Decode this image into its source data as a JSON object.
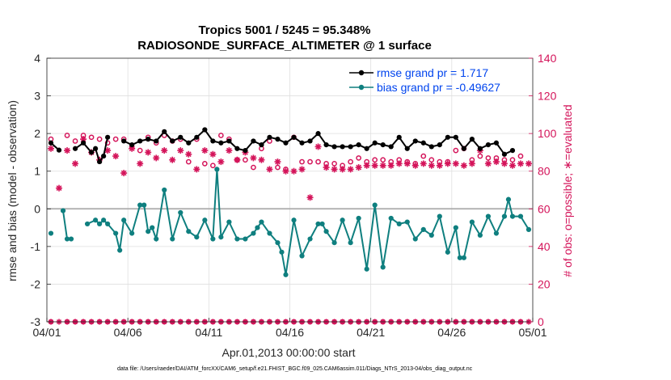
{
  "chart_data": {
    "type": "line",
    "title": "Tropics 5001 / 5245 = 95.348%",
    "subtitle": "RADIOSONDE_SURFACE_ALTIMETER @ 1 surface",
    "xlabel": "Apr.01,2013 00:00:00 start",
    "ylabel": "rmse and bias (model - observation)",
    "ylabel_right": "# of obs: o=possible; ∗=evaluated",
    "xlim": [
      1,
      31
    ],
    "ylim": [
      -3,
      4
    ],
    "ylim_right": [
      0,
      140
    ],
    "x_tick_labels": [
      "04/01",
      "04/06",
      "04/11",
      "04/16",
      "04/21",
      "04/26",
      "05/01"
    ],
    "y_tick_labels": [
      "-3",
      "-2",
      "-1",
      "0",
      "1",
      "2",
      "3",
      "4"
    ],
    "y_tick_labels_right": [
      "0",
      "20",
      "40",
      "60",
      "80",
      "100",
      "120",
      "140"
    ],
    "colors": {
      "rmse": "#000000",
      "bias": "#0f7f7f",
      "obs": "#d4145a",
      "legend_text": "#0044ee",
      "zero_line": "#aaaaaa"
    },
    "series": [
      {
        "name": "rmse grand pr = 1.717",
        "marker": "filled-circle",
        "points": [
          [
            1.25,
            1.75
          ],
          [
            1.75,
            1.56
          ],
          [
            2.75,
            1.6
          ],
          [
            3.25,
            1.75
          ],
          [
            3.75,
            1.5
          ],
          [
            4.0,
            1.6
          ],
          [
            4.25,
            1.25
          ],
          [
            4.5,
            1.4
          ],
          [
            4.75,
            1.9
          ],
          [
            5.75,
            1.8
          ],
          [
            6.25,
            1.7
          ],
          [
            6.75,
            1.8
          ],
          [
            7.25,
            1.85
          ],
          [
            7.75,
            1.8
          ],
          [
            8.25,
            2.05
          ],
          [
            8.75,
            1.8
          ],
          [
            9.25,
            1.9
          ],
          [
            9.75,
            1.75
          ],
          [
            10.25,
            1.9
          ],
          [
            10.75,
            2.1
          ],
          [
            11.25,
            1.8
          ],
          [
            11.75,
            1.75
          ],
          [
            12.25,
            1.8
          ],
          [
            12.75,
            1.6
          ],
          [
            13.25,
            1.55
          ],
          [
            13.75,
            1.8
          ],
          [
            14.25,
            1.7
          ],
          [
            14.75,
            1.9
          ],
          [
            15.25,
            1.85
          ],
          [
            15.75,
            1.75
          ],
          [
            16.25,
            1.9
          ],
          [
            16.75,
            1.75
          ],
          [
            17.25,
            1.8
          ],
          [
            17.75,
            2.0
          ],
          [
            18.25,
            1.7
          ],
          [
            18.75,
            1.65
          ],
          [
            19.25,
            1.65
          ],
          [
            19.75,
            1.65
          ],
          [
            20.25,
            1.7
          ],
          [
            20.75,
            1.6
          ],
          [
            21.25,
            1.75
          ],
          [
            21.75,
            1.7
          ],
          [
            22.25,
            1.65
          ],
          [
            22.75,
            1.9
          ],
          [
            23.25,
            1.6
          ],
          [
            23.75,
            1.8
          ],
          [
            24.25,
            1.75
          ],
          [
            24.75,
            1.65
          ],
          [
            25.25,
            1.7
          ],
          [
            25.75,
            1.9
          ],
          [
            26.25,
            1.9
          ],
          [
            26.75,
            1.6
          ],
          [
            27.25,
            1.85
          ],
          [
            27.75,
            1.6
          ],
          [
            28.25,
            1.7
          ],
          [
            28.75,
            1.75
          ],
          [
            29.25,
            1.45
          ],
          [
            29.75,
            1.55
          ]
        ]
      },
      {
        "name": "bias grand pr = -0.49627",
        "marker": "filled-circle",
        "points": [
          [
            1.25,
            -0.65
          ],
          [
            2.0,
            -0.05
          ],
          [
            2.25,
            -0.8
          ],
          [
            2.5,
            -0.8
          ],
          [
            3.5,
            -0.4
          ],
          [
            4.0,
            -0.3
          ],
          [
            4.25,
            -0.4
          ],
          [
            4.5,
            -0.3
          ],
          [
            4.75,
            -0.4
          ],
          [
            5.25,
            -0.65
          ],
          [
            5.5,
            -1.1
          ],
          [
            5.75,
            -0.3
          ],
          [
            6.25,
            -0.65
          ],
          [
            6.75,
            0.1
          ],
          [
            7.0,
            0.1
          ],
          [
            7.25,
            -0.6
          ],
          [
            7.5,
            -0.5
          ],
          [
            7.75,
            -0.8
          ],
          [
            8.25,
            0.5
          ],
          [
            8.75,
            -0.8
          ],
          [
            9.25,
            -0.1
          ],
          [
            9.75,
            -0.6
          ],
          [
            10.25,
            -0.75
          ],
          [
            10.75,
            -0.3
          ],
          [
            11.25,
            -0.8
          ],
          [
            11.5,
            1.05
          ],
          [
            11.75,
            -0.75
          ],
          [
            12.25,
            -0.35
          ],
          [
            12.75,
            -0.8
          ],
          [
            13.25,
            -0.8
          ],
          [
            13.75,
            -0.65
          ],
          [
            14.0,
            -0.5
          ],
          [
            14.25,
            -0.35
          ],
          [
            14.75,
            -0.65
          ],
          [
            15.25,
            -0.9
          ],
          [
            15.5,
            -1.15
          ],
          [
            15.75,
            -1.75
          ],
          [
            16.25,
            -0.3
          ],
          [
            16.75,
            -1.25
          ],
          [
            17.25,
            -0.8
          ],
          [
            17.75,
            -0.4
          ],
          [
            18.0,
            -0.4
          ],
          [
            18.25,
            -0.6
          ],
          [
            18.75,
            -0.9
          ],
          [
            19.25,
            -0.3
          ],
          [
            19.75,
            -0.9
          ],
          [
            20.25,
            -0.25
          ],
          [
            20.75,
            -1.6
          ],
          [
            21.25,
            0.1
          ],
          [
            21.75,
            -1.55
          ],
          [
            22.25,
            -0.25
          ],
          [
            22.75,
            -0.4
          ],
          [
            23.25,
            -0.35
          ],
          [
            23.75,
            -0.8
          ],
          [
            24.25,
            -0.55
          ],
          [
            24.75,
            -0.7
          ],
          [
            25.25,
            -0.2
          ],
          [
            25.75,
            -1.15
          ],
          [
            26.25,
            -0.5
          ],
          [
            26.5,
            -1.3
          ],
          [
            26.75,
            -1.3
          ],
          [
            27.25,
            -0.35
          ],
          [
            27.75,
            -0.7
          ],
          [
            28.25,
            -0.2
          ],
          [
            28.75,
            -0.65
          ],
          [
            29.25,
            -0.2
          ],
          [
            29.5,
            0.25
          ],
          [
            29.75,
            -0.2
          ],
          [
            30.25,
            -0.2
          ],
          [
            30.75,
            -0.55
          ]
        ]
      },
      {
        "name": "obs possible",
        "marker": "open-circle",
        "axis": "right",
        "points": [
          [
            1.25,
            97
          ],
          [
            2.25,
            99
          ],
          [
            2.75,
            96
          ],
          [
            3.25,
            99
          ],
          [
            3.75,
            98
          ],
          [
            4.25,
            97
          ],
          [
            4.75,
            95
          ],
          [
            5.25,
            97
          ],
          [
            5.75,
            97
          ],
          [
            6.25,
            93
          ],
          [
            6.75,
            91
          ],
          [
            7.25,
            98
          ],
          [
            7.75,
            95
          ],
          [
            8.25,
            99
          ],
          [
            8.75,
            96
          ],
          [
            9.25,
            97
          ],
          [
            9.75,
            85
          ],
          [
            10.25,
            97
          ],
          [
            10.75,
            84
          ],
          [
            11.25,
            83
          ],
          [
            11.75,
            99
          ],
          [
            12.25,
            97
          ],
          [
            12.75,
            86
          ],
          [
            13.25,
            86
          ],
          [
            13.75,
            82
          ],
          [
            14.25,
            92
          ],
          [
            14.75,
            96
          ],
          [
            15.25,
            82
          ],
          [
            15.75,
            81
          ],
          [
            16.25,
            98
          ],
          [
            16.75,
            85
          ],
          [
            17.25,
            85
          ],
          [
            17.75,
            85
          ],
          [
            18.25,
            84
          ],
          [
            18.75,
            84
          ],
          [
            19.25,
            83
          ],
          [
            19.75,
            85
          ],
          [
            20.25,
            87
          ],
          [
            20.75,
            85
          ],
          [
            21.25,
            86
          ],
          [
            21.75,
            86
          ],
          [
            22.25,
            85
          ],
          [
            22.75,
            86
          ],
          [
            23.25,
            85
          ],
          [
            23.75,
            84
          ],
          [
            24.25,
            88
          ],
          [
            24.75,
            86
          ],
          [
            25.25,
            85
          ],
          [
            25.75,
            85
          ],
          [
            26.25,
            91
          ],
          [
            26.75,
            92
          ],
          [
            27.25,
            86
          ],
          [
            27.75,
            88
          ],
          [
            28.25,
            87
          ],
          [
            28.75,
            87
          ],
          [
            29.25,
            86
          ],
          [
            29.75,
            86
          ],
          [
            30.25,
            88
          ]
        ]
      },
      {
        "name": "obs evaluated",
        "marker": "asterisk",
        "axis": "right",
        "points": [
          [
            1.25,
            92
          ],
          [
            1.75,
            71
          ],
          [
            2.25,
            91
          ],
          [
            2.75,
            84
          ],
          [
            3.25,
            97
          ],
          [
            3.75,
            90
          ],
          [
            4.25,
            86
          ],
          [
            4.75,
            91
          ],
          [
            5.25,
            88
          ],
          [
            5.75,
            79
          ],
          [
            6.25,
            92
          ],
          [
            6.75,
            84
          ],
          [
            7.25,
            90
          ],
          [
            7.75,
            87
          ],
          [
            8.25,
            91
          ],
          [
            8.75,
            86
          ],
          [
            9.25,
            91
          ],
          [
            9.75,
            89
          ],
          [
            10.25,
            81
          ],
          [
            10.75,
            91
          ],
          [
            11.25,
            89
          ],
          [
            11.75,
            85
          ],
          [
            12.25,
            91
          ],
          [
            12.75,
            86
          ],
          [
            13.25,
            90
          ],
          [
            13.75,
            87
          ],
          [
            14.25,
            86
          ],
          [
            14.75,
            81
          ],
          [
            15.25,
            85
          ],
          [
            15.75,
            80
          ],
          [
            16.25,
            80
          ],
          [
            16.75,
            81
          ],
          [
            17.25,
            66
          ],
          [
            17.75,
            93
          ],
          [
            18.25,
            82
          ],
          [
            18.75,
            81
          ],
          [
            19.25,
            81
          ],
          [
            19.75,
            81
          ],
          [
            20.25,
            82
          ],
          [
            20.75,
            83
          ],
          [
            21.25,
            83
          ],
          [
            21.75,
            83
          ],
          [
            22.25,
            83
          ],
          [
            22.75,
            84
          ],
          [
            23.25,
            84
          ],
          [
            23.75,
            83
          ],
          [
            24.25,
            84
          ],
          [
            24.75,
            83
          ],
          [
            25.25,
            83
          ],
          [
            25.75,
            84
          ],
          [
            26.25,
            84
          ],
          [
            26.75,
            83
          ],
          [
            27.25,
            84
          ],
          [
            27.75,
            91
          ],
          [
            28.25,
            84
          ],
          [
            28.75,
            85
          ],
          [
            29.25,
            84
          ],
          [
            29.75,
            83
          ],
          [
            30.25,
            84
          ],
          [
            30.75,
            84
          ]
        ]
      }
    ],
    "zero_line_y": 0,
    "baseline_markers_y": -3,
    "footnote": "data file: /Users/raeder/DAI/ATM_forcXX/CAM6_setup/f.e21.FHIST_BGC.f09_025.CAM6assim.011/Diags_NTrS_2013-04/obs_diag_output.nc"
  }
}
